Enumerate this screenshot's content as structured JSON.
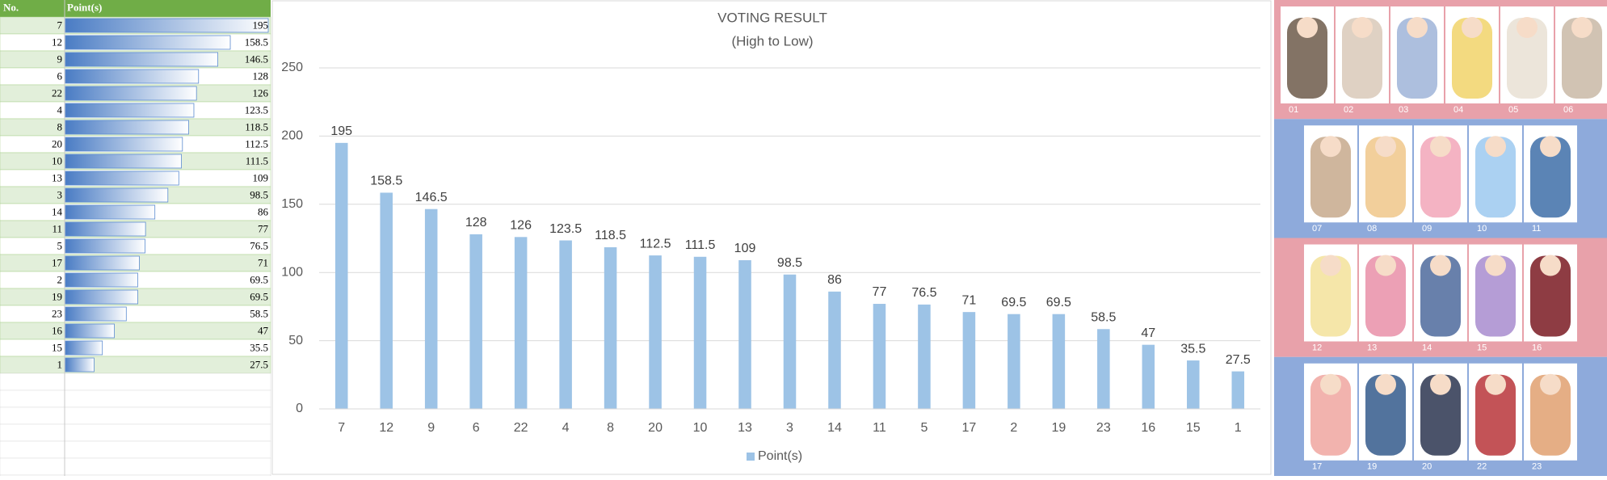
{
  "table": {
    "headers": [
      "No.",
      "Point(s)"
    ]
  },
  "chart_data": {
    "type": "bar",
    "title": "VOTING RESULT",
    "subtitle": "(High to Low)",
    "categories": [
      "7",
      "12",
      "9",
      "6",
      "22",
      "4",
      "8",
      "20",
      "10",
      "13",
      "3",
      "14",
      "11",
      "5",
      "17",
      "2",
      "19",
      "23",
      "16",
      "15",
      "1"
    ],
    "series": [
      {
        "name": "Point(s)",
        "color": "#9dc3e6",
        "values": [
          195,
          158.5,
          146.5,
          128,
          126,
          123.5,
          118.5,
          112.5,
          111.5,
          109,
          98.5,
          86,
          77,
          76.5,
          71,
          69.5,
          69.5,
          58.5,
          47,
          35.5,
          27.5
        ]
      }
    ],
    "ylim": [
      0,
      250
    ],
    "yticks": [
      0,
      50,
      100,
      150,
      200,
      250
    ],
    "grid": true,
    "legend": "bottom"
  },
  "gallery": {
    "rows": [
      [
        "01",
        "02",
        "03",
        "04",
        "05",
        "06"
      ],
      [
        "07",
        "08",
        "09",
        "10",
        "11"
      ],
      [
        "12",
        "13",
        "14",
        "15",
        "16"
      ],
      [
        "17",
        "19",
        "20",
        "22",
        "23"
      ]
    ]
  }
}
